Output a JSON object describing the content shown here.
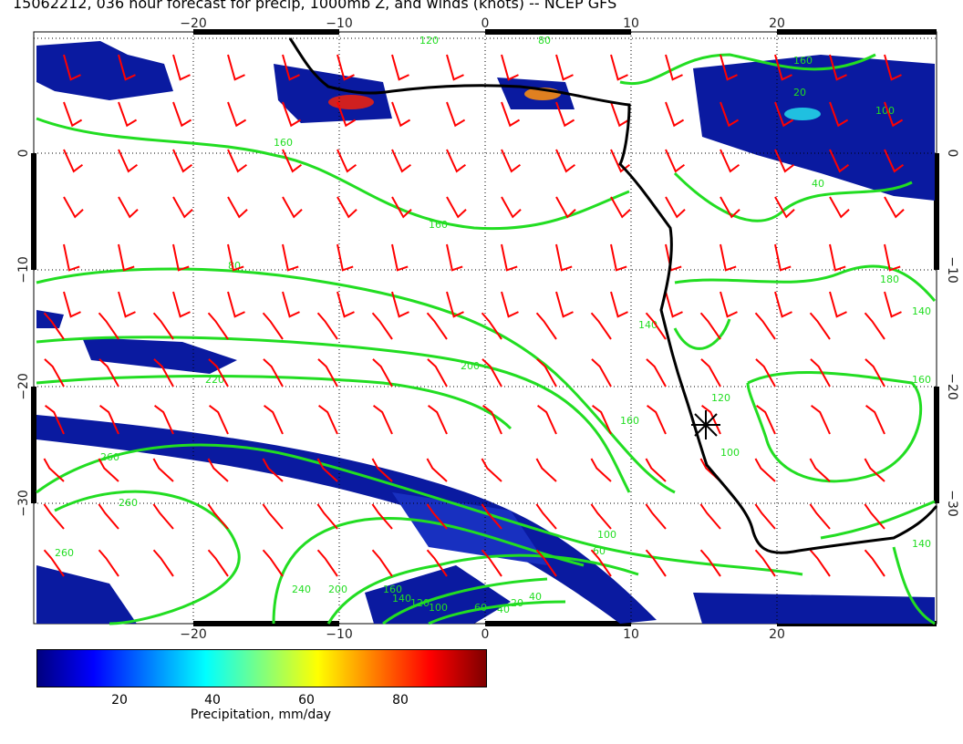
{
  "title": "15062212, 036 hour forecast for precip, 1000mb Z, and winds (knots) -- NCEP GFS",
  "map": {
    "lon_ticks": [
      "−20",
      "−10",
      "0",
      "10",
      "20"
    ],
    "lat_ticks": [
      "0",
      "−10",
      "−20",
      "−30"
    ],
    "contour_labels": [
      "120",
      "80",
      "160",
      "160",
      "80",
      "140",
      "200",
      "220",
      "160",
      "260",
      "260",
      "260",
      "240",
      "200",
      "160",
      "140",
      "120",
      "100",
      "60",
      "40",
      "20",
      "40",
      "60",
      "100",
      "120",
      "140",
      "160",
      "180",
      "40",
      "100",
      "20",
      "100",
      "140",
      "160"
    ]
  },
  "colorbar": {
    "ticks": [
      "20",
      "40",
      "60",
      "80"
    ],
    "label": "Precipitation, mm/day",
    "colors": [
      "#00007f",
      "#0000ff",
      "#007fff",
      "#00ffff",
      "#7fff7f",
      "#ffff00",
      "#ff7f00",
      "#ff0000",
      "#7f0000"
    ]
  },
  "style": {
    "contour_color": "#22dd22",
    "barb_color": "#ff0000",
    "coast_color": "#000000"
  }
}
